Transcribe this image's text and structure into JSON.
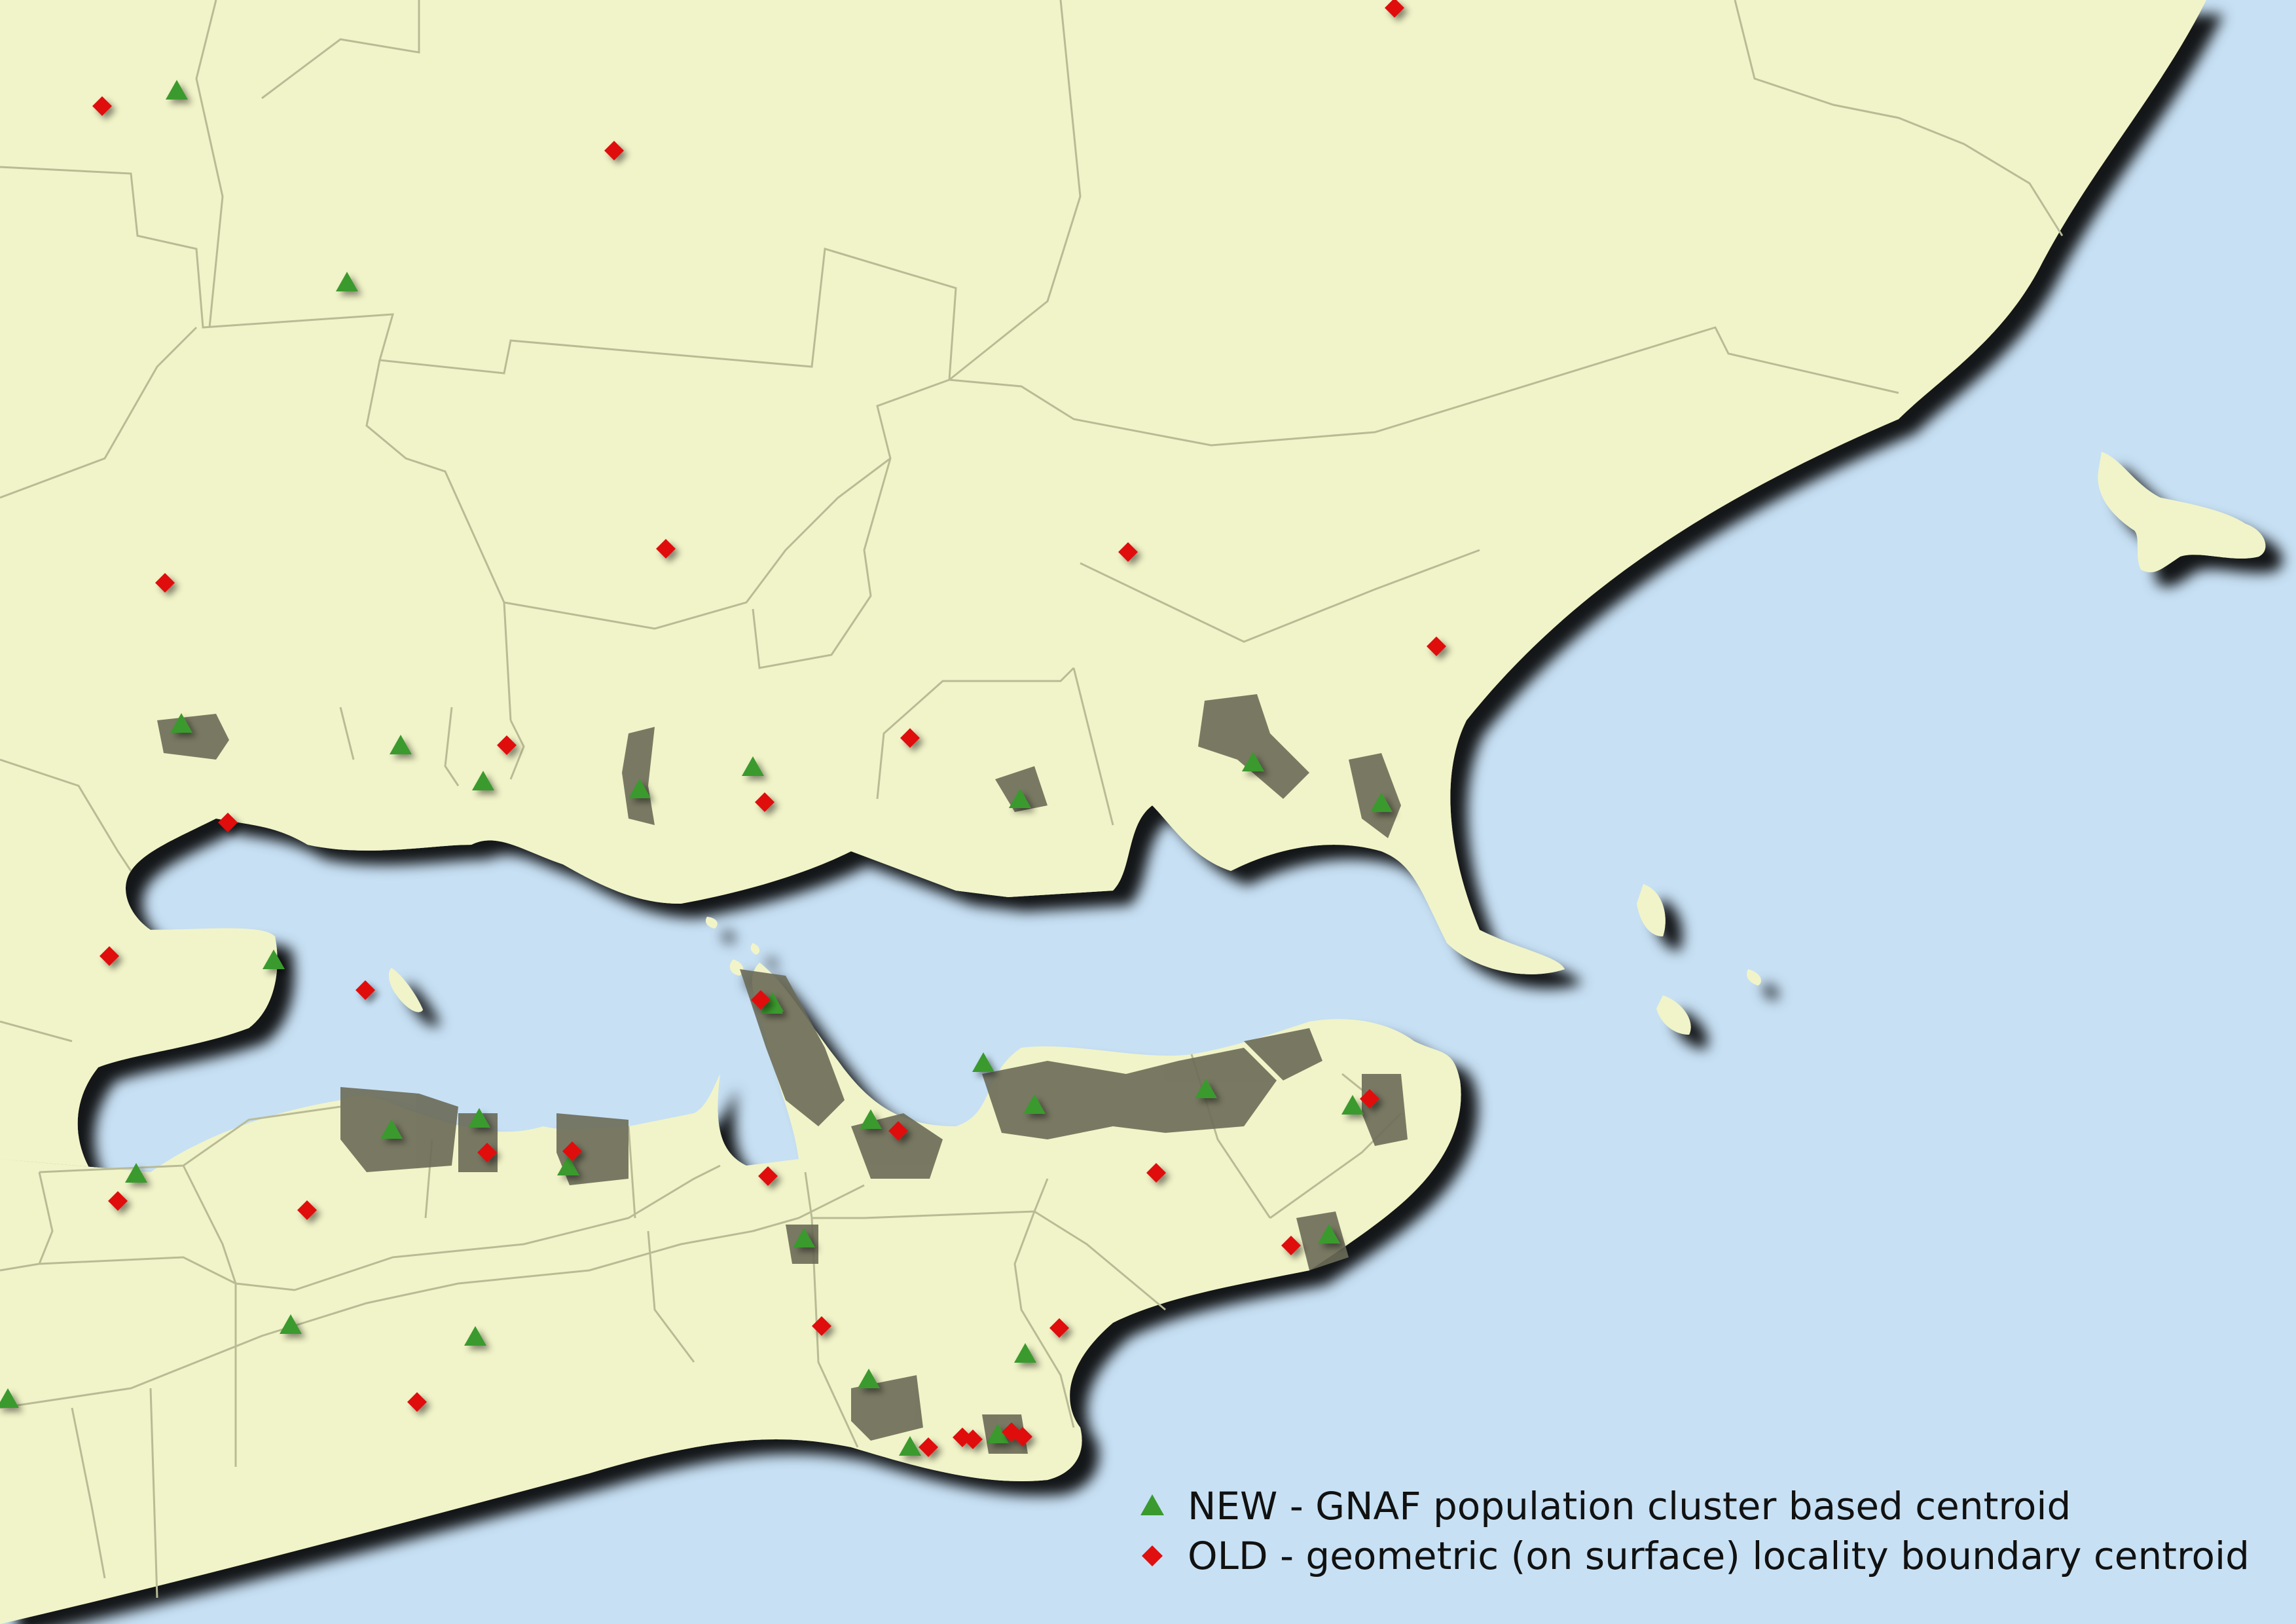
{
  "legend": {
    "new_label": "NEW - GNAF population cluster based centroid",
    "old_label": "OLD - geometric (on surface) locality boundary centroid",
    "new_symbol": "triangle",
    "old_symbol": "diamond"
  },
  "colors": {
    "sea": "#c7e0f4",
    "land": "#f1f4c8",
    "boundary": "#b9bb95",
    "built_up": "#6b6b58",
    "new_centroid": "#3a9a2e",
    "old_centroid": "#e01010"
  },
  "map": {
    "new_centroid_count": 31,
    "old_centroid_count": 31,
    "features": [
      "locality boundaries",
      "bay",
      "coastline",
      "islands",
      "built-up areas"
    ]
  }
}
